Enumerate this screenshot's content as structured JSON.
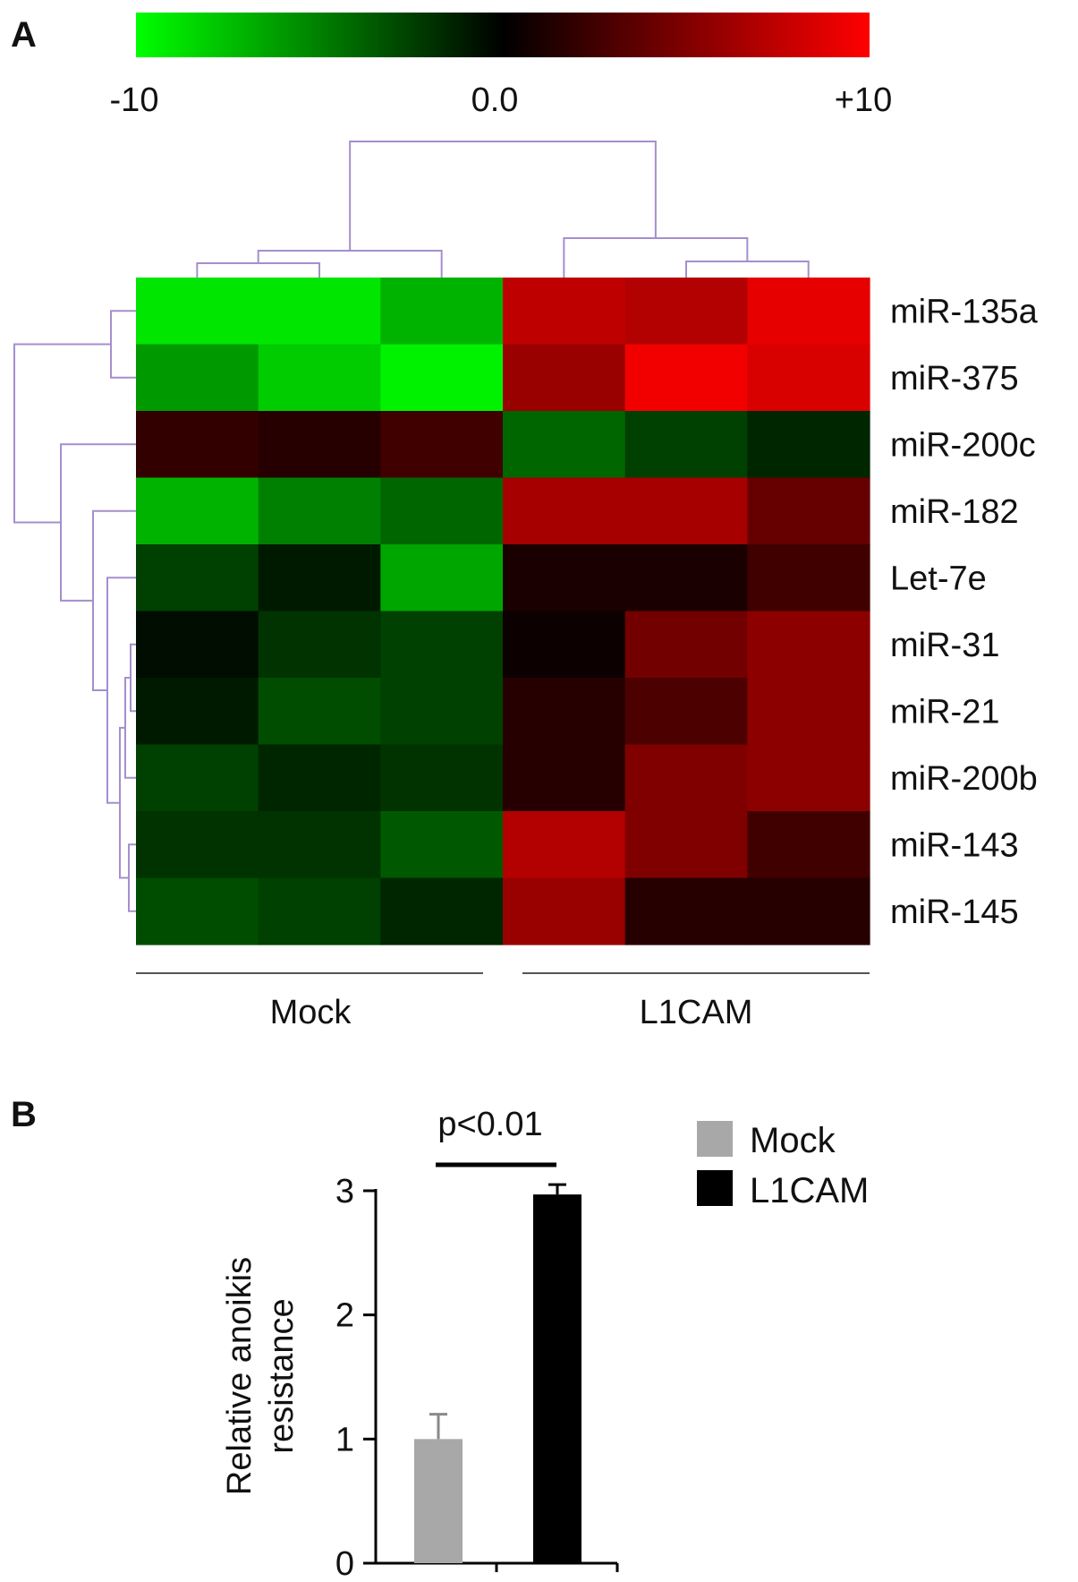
{
  "chart_data": [
    {
      "panel": "A",
      "type": "heatmap",
      "colorbar": {
        "min": -10,
        "mid": 0,
        "max": 10,
        "tick_labels": [
          "-10",
          "0.0",
          "+10"
        ],
        "colors": {
          "low": "#00ff00",
          "mid": "#000000",
          "high": "#ff0000"
        }
      },
      "rows": [
        "miR-135a",
        "miR-375",
        "miR-200c",
        "miR-182",
        "Let-7e",
        "miR-31",
        "miR-21",
        "miR-200b",
        "miR-143",
        "miR-145"
      ],
      "groups": [
        {
          "label": "Mock",
          "columns": 3
        },
        {
          "label": "L1CAM",
          "columns": 3
        }
      ],
      "values": [
        [
          -9,
          -9,
          -7,
          7.5,
          7,
          9
        ],
        [
          -6,
          -8,
          -9.5,
          6,
          9.5,
          8.5
        ],
        [
          2,
          1.5,
          2.5,
          -4,
          -2.5,
          -1.5
        ],
        [
          -7,
          -5,
          -4,
          6.5,
          6.5,
          4
        ],
        [
          -2.5,
          -1,
          -6.5,
          1,
          1,
          2.5
        ],
        [
          -0.5,
          -2,
          -2.5,
          0.5,
          4.5,
          5.5
        ],
        [
          -1,
          -3,
          -2.5,
          1.5,
          3,
          5.5
        ],
        [
          -2.5,
          -1.5,
          -2,
          1.5,
          5,
          5.5
        ],
        [
          -2,
          -2,
          -3.5,
          7,
          5,
          2.5
        ],
        [
          -3,
          -2.5,
          -1.5,
          6,
          1.5,
          1.5
        ]
      ],
      "dendrogram_color": "#a48fcc"
    },
    {
      "panel": "B",
      "type": "bar",
      "categories": [
        "Mock",
        "L1CAM"
      ],
      "series": [
        {
          "values": [
            1.0,
            2.97
          ],
          "error": [
            0.2,
            0.08
          ]
        }
      ],
      "colors": [
        "#a8a8a8",
        "#000000"
      ],
      "ylabel": [
        "Relative anoikis",
        "resistance"
      ],
      "ylim": [
        0,
        3
      ],
      "yticks": [
        0,
        1,
        2,
        3
      ],
      "annotation": "p<0.01",
      "legend": [
        "Mock",
        "L1CAM"
      ],
      "legend_position": "top-right"
    }
  ]
}
